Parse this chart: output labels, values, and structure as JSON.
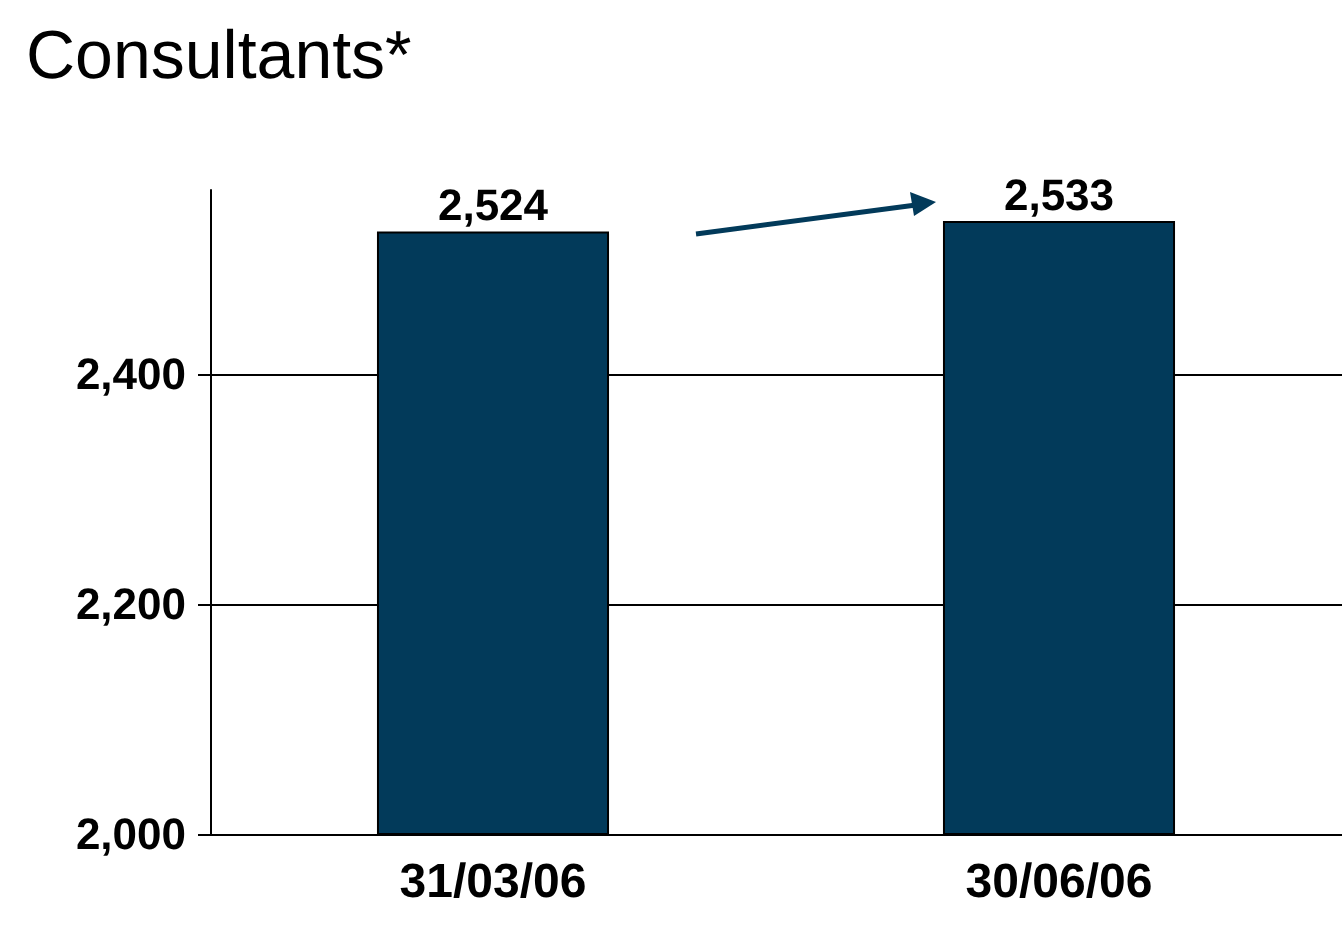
{
  "chart_data": {
    "type": "bar",
    "title": "Consultants*",
    "categories": [
      "31/03/06",
      "30/06/06"
    ],
    "values": [
      2524,
      2533
    ],
    "value_labels": [
      "2,524",
      "2,533"
    ],
    "color": "#023a5a",
    "ylim": [
      2000,
      2560
    ],
    "yticks": [
      {
        "value": 2000,
        "label": "2,000"
      },
      {
        "value": 2200,
        "label": "2,200"
      },
      {
        "value": 2400,
        "label": "2,400"
      }
    ],
    "grid": "y"
  }
}
